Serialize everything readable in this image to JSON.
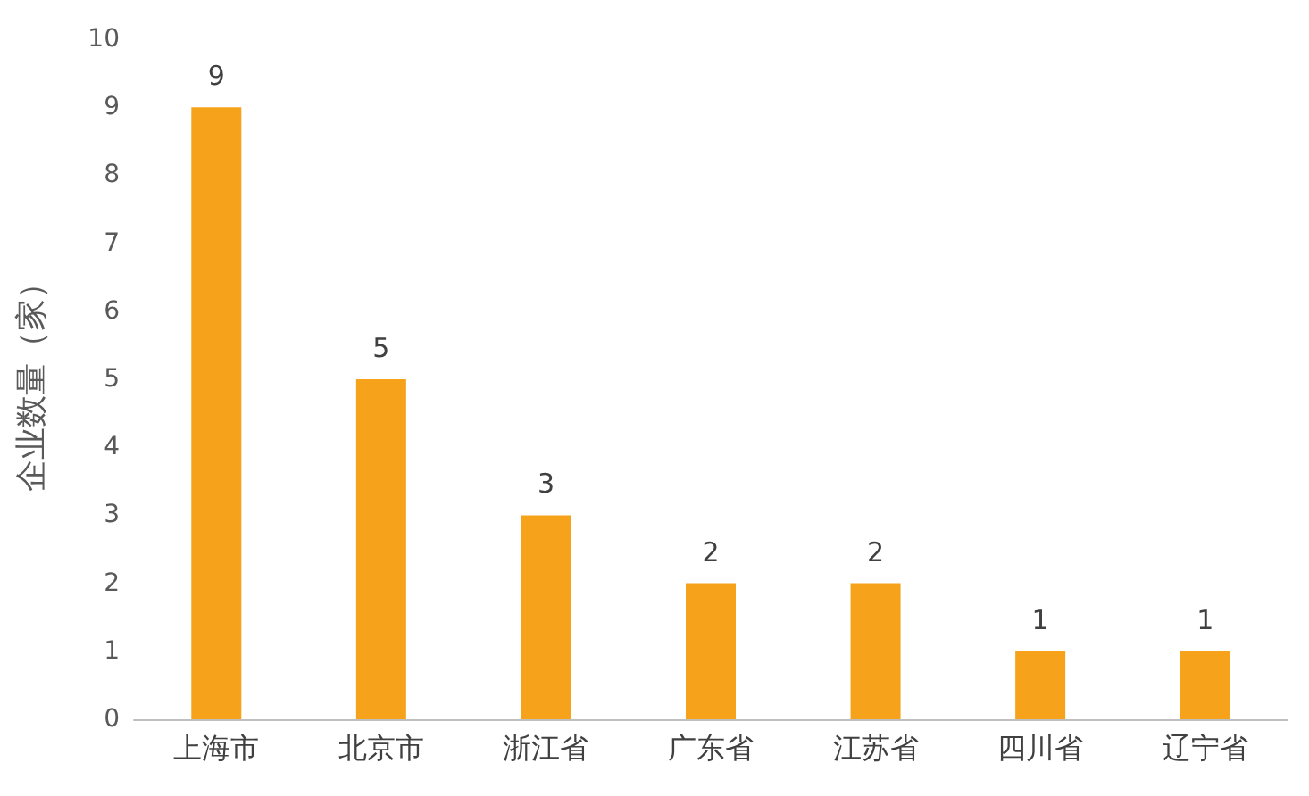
{
  "chart_data": {
    "type": "bar",
    "ylabel": "企业数量（家）",
    "categories": [
      "上海市",
      "北京市",
      "浙江省",
      "广东省",
      "江苏省",
      "四川省",
      "辽宁省"
    ],
    "values": [
      9,
      5,
      3,
      2,
      2,
      1,
      1
    ],
    "color": "#f7a21b",
    "ylim": [
      0,
      10
    ],
    "yticks": [
      0,
      1,
      2,
      3,
      4,
      5,
      6,
      7,
      8,
      9,
      10
    ],
    "data_labels": true
  }
}
